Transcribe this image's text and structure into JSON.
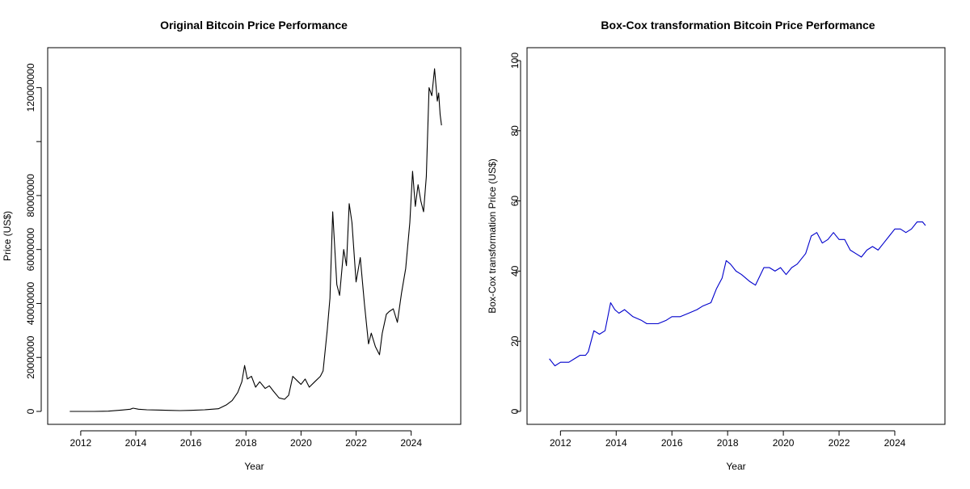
{
  "chart_data": [
    {
      "type": "line",
      "title": "Original Bitcoin Price Performance",
      "xlabel": "Year",
      "ylabel": "Price (US$)",
      "xlim": [
        2010.8,
        2025.8
      ],
      "ylim": [
        0,
        130000000
      ],
      "xticks": [
        2012,
        2014,
        2016,
        2018,
        2020,
        2022,
        2024
      ],
      "xtick_labels": [
        "2012",
        "2014",
        "2016",
        "2018",
        "2020",
        "2022",
        "2024"
      ],
      "yticks": [
        0,
        20000000,
        40000000,
        60000000,
        80000000,
        100000000,
        120000000
      ],
      "ytick_labels": [
        "0",
        "20000000",
        "40000000",
        "60000000",
        "80000000",
        "",
        "120000000"
      ],
      "color": "#000000",
      "grid": false,
      "series": [
        {
          "x": [
            2011.6,
            2012.0,
            2012.5,
            2013.0,
            2013.5,
            2013.8,
            2013.9,
            2014.1,
            2014.4,
            2014.8,
            2015.2,
            2015.6,
            2016.0,
            2016.5,
            2017.0,
            2017.3,
            2017.5,
            2017.7,
            2017.85,
            2017.95,
            2018.05,
            2018.2,
            2018.35,
            2018.5,
            2018.7,
            2018.85,
            2019.0,
            2019.2,
            2019.4,
            2019.55,
            2019.7,
            2019.9,
            2020.0,
            2020.15,
            2020.3,
            2020.5,
            2020.7,
            2020.8,
            2020.95,
            2021.05,
            2021.15,
            2021.3,
            2021.4,
            2021.55,
            2021.65,
            2021.75,
            2021.85,
            2022.0,
            2022.15,
            2022.3,
            2022.45,
            2022.55,
            2022.7,
            2022.85,
            2022.95,
            2023.1,
            2023.2,
            2023.35,
            2023.5,
            2023.65,
            2023.8,
            2023.95,
            2024.05,
            2024.15,
            2024.25,
            2024.35,
            2024.45,
            2024.55,
            2024.65,
            2024.75,
            2024.85,
            2024.95,
            2025.0,
            2025.05,
            2025.1
          ],
          "y": [
            0,
            0,
            0,
            100000,
            500000,
            800000,
            1200000,
            800000,
            600000,
            500000,
            400000,
            300000,
            400000,
            600000,
            1000000,
            2500000,
            4000000,
            7000000,
            11000000,
            17000000,
            12000000,
            13000000,
            9000000,
            11000000,
            8500000,
            9500000,
            7500000,
            5000000,
            4500000,
            6000000,
            13000000,
            11000000,
            10000000,
            12000000,
            9000000,
            11000000,
            13000000,
            15000000,
            30000000,
            42000000,
            74000000,
            47000000,
            43000000,
            60000000,
            54000000,
            77000000,
            70000000,
            48000000,
            57000000,
            40000000,
            25000000,
            29000000,
            24000000,
            21000000,
            29000000,
            36000000,
            37000000,
            38000000,
            33000000,
            44000000,
            53000000,
            70000000,
            89000000,
            76000000,
            84000000,
            78000000,
            74000000,
            87000000,
            120000000,
            117000000,
            127000000,
            115000000,
            118000000,
            110000000,
            106000000
          ]
        }
      ]
    },
    {
      "type": "line",
      "title": "Box-Cox transformation Bitcoin Price Performance",
      "xlabel": "Year",
      "ylabel": "Box-Cox transformation Price (US$)",
      "xlim": [
        2010.8,
        2025.8
      ],
      "ylim": [
        0,
        100
      ],
      "xticks": [
        2012,
        2014,
        2016,
        2018,
        2020,
        2022,
        2024
      ],
      "xtick_labels": [
        "2012",
        "2014",
        "2016",
        "2018",
        "2020",
        "2022",
        "2024"
      ],
      "yticks": [
        0,
        20,
        40,
        60,
        80,
        100
      ],
      "ytick_labels": [
        "0",
        "20",
        "40",
        "60",
        "80",
        "100"
      ],
      "color": "#0000cc",
      "grid": false,
      "series": [
        {
          "x": [
            2011.6,
            2011.7,
            2011.8,
            2012.0,
            2012.3,
            2012.5,
            2012.7,
            2012.9,
            2013.0,
            2013.2,
            2013.4,
            2013.6,
            2013.8,
            2013.95,
            2014.1,
            2014.3,
            2014.6,
            2014.9,
            2015.1,
            2015.3,
            2015.5,
            2015.8,
            2016.0,
            2016.3,
            2016.6,
            2016.9,
            2017.1,
            2017.4,
            2017.6,
            2017.8,
            2017.95,
            2018.1,
            2018.3,
            2018.5,
            2018.8,
            2019.0,
            2019.3,
            2019.5,
            2019.7,
            2019.9,
            2020.1,
            2020.3,
            2020.5,
            2020.8,
            2021.0,
            2021.2,
            2021.4,
            2021.6,
            2021.8,
            2022.0,
            2022.2,
            2022.4,
            2022.6,
            2022.8,
            2023.0,
            2023.2,
            2023.4,
            2023.6,
            2023.8,
            2024.0,
            2024.2,
            2024.4,
            2024.6,
            2024.8,
            2024.9,
            2025.0,
            2025.1
          ],
          "y": [
            15,
            14,
            13,
            14,
            14,
            15,
            16,
            16,
            17,
            23,
            22,
            23,
            31,
            29,
            28,
            29,
            27,
            26,
            25,
            25,
            25,
            26,
            27,
            27,
            28,
            29,
            30,
            31,
            35,
            38,
            43,
            42,
            40,
            39,
            37,
            36,
            41,
            41,
            40,
            41,
            39,
            41,
            42,
            45,
            50,
            51,
            48,
            49,
            51,
            49,
            49,
            46,
            45,
            44,
            46,
            47,
            46,
            48,
            50,
            52,
            52,
            51,
            52,
            54,
            54,
            54,
            53
          ]
        }
      ]
    }
  ]
}
